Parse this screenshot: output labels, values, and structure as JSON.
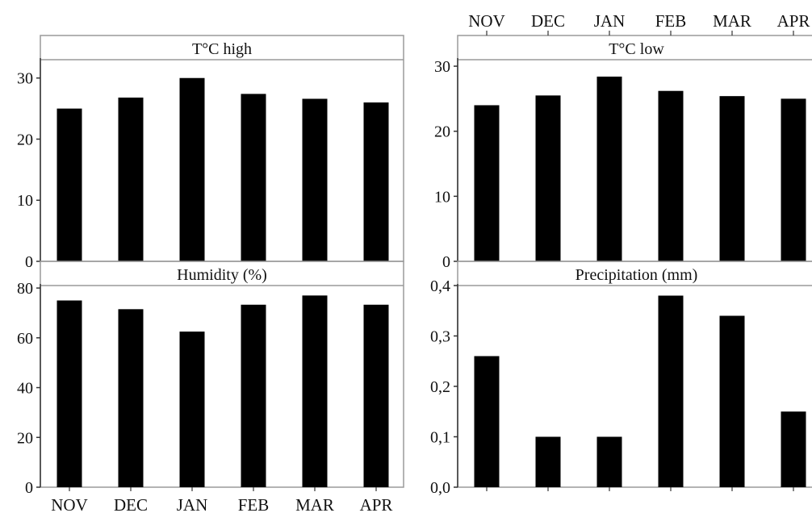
{
  "chart_data": [
    {
      "type": "bar",
      "title": "T°C high",
      "categories": [
        "NOV",
        "DEC",
        "JAN",
        "FEB",
        "MAR",
        "APR"
      ],
      "values": [
        25.0,
        26.8,
        30.0,
        27.4,
        26.6,
        26.0
      ],
      "ylim": [
        0,
        33
      ],
      "yticks": [
        "0",
        "10",
        "20",
        "30"
      ],
      "ytick_values": [
        0,
        10,
        20,
        30
      ]
    },
    {
      "type": "bar",
      "title": "T°C low",
      "categories": [
        "NOV",
        "DEC",
        "JAN",
        "FEB",
        "MAR",
        "APR"
      ],
      "values": [
        24.0,
        25.5,
        28.4,
        26.2,
        25.4,
        25.0
      ],
      "ylim": [
        0,
        31
      ],
      "yticks": [
        "0",
        "10",
        "20",
        "30"
      ],
      "ytick_values": [
        0,
        10,
        20,
        30
      ]
    },
    {
      "type": "bar",
      "title": "Humidity (%)",
      "categories": [
        "NOV",
        "DEC",
        "JAN",
        "FEB",
        "MAR",
        "APR"
      ],
      "values": [
        75,
        71.5,
        62.5,
        73.3,
        77,
        73.3
      ],
      "ylim": [
        0,
        81
      ],
      "yticks": [
        "0",
        "20",
        "40",
        "60",
        "80"
      ],
      "ytick_values": [
        0,
        20,
        40,
        60,
        80
      ]
    },
    {
      "type": "bar",
      "title": "Precipitation (mm)",
      "categories": [
        "NOV",
        "DEC",
        "JAN",
        "FEB",
        "MAR",
        "APR"
      ],
      "values": [
        0.26,
        0.1,
        0.1,
        0.38,
        0.34,
        0.15
      ],
      "ylim": [
        0,
        0.4
      ],
      "yticks": [
        "0,0",
        "0,1",
        "0,2",
        "0,3",
        "0,4"
      ],
      "ytick_values": [
        0,
        0.1,
        0.2,
        0.3,
        0.4
      ]
    }
  ],
  "month_labels_top": [
    "NOV",
    "DEC",
    "JAN",
    "FEB",
    "MAR",
    "APR"
  ],
  "month_labels_bottom": [
    "NOV",
    "DEC",
    "JAN",
    "FEB",
    "MAR",
    "APR"
  ],
  "colors": {
    "bar": "#000000",
    "frame": "#9a9a9a",
    "axis": "#333333"
  }
}
